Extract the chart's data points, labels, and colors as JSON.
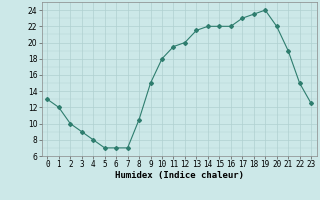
{
  "x": [
    0,
    1,
    2,
    3,
    4,
    5,
    6,
    7,
    8,
    9,
    10,
    11,
    12,
    13,
    14,
    15,
    16,
    17,
    18,
    19,
    20,
    21,
    22,
    23
  ],
  "y": [
    13,
    12,
    10,
    9,
    8,
    7,
    7,
    7,
    10.5,
    15,
    18,
    19.5,
    20,
    21.5,
    22,
    22,
    22,
    23,
    23.5,
    24,
    22,
    19,
    15,
    12.5
  ],
  "line_color": "#2e7d6e",
  "marker": "D",
  "marker_size": 2.0,
  "bg_color": "#cce8e8",
  "grid_color": "#b0d0d0",
  "xlabel": "Humidex (Indice chaleur)",
  "xlim": [
    -0.5,
    23.5
  ],
  "ylim": [
    6,
    25
  ],
  "yticks": [
    6,
    8,
    10,
    12,
    14,
    16,
    18,
    20,
    22,
    24
  ],
  "xticks": [
    0,
    1,
    2,
    3,
    4,
    5,
    6,
    7,
    8,
    9,
    10,
    11,
    12,
    13,
    14,
    15,
    16,
    17,
    18,
    19,
    20,
    21,
    22,
    23
  ],
  "xlabel_fontsize": 6.5,
  "tick_fontsize": 5.5
}
